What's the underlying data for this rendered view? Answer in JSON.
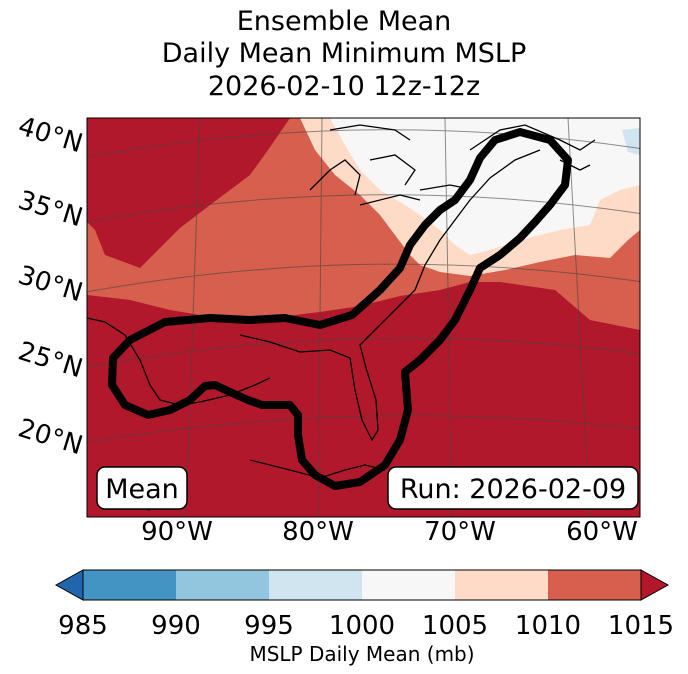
{
  "title_lines": [
    "Ensemble Mean",
    "Daily Mean Minimum MSLP",
    "2026-02-10 12z-12z"
  ],
  "map": {
    "lat_labels": [
      "40°N",
      "35°N",
      "30°N",
      "25°N",
      "20°N"
    ],
    "lon_labels": [
      "90°W",
      "80°W",
      "70°W",
      "60°W"
    ],
    "overlay_left": "Mean",
    "overlay_right": "Run: 2026-02-09",
    "contour_color": "#000000"
  },
  "colorbar": {
    "label": "MSLP Daily Mean (mb)",
    "ticks": [
      "985",
      "990",
      "995",
      "1000",
      "1005",
      "1010",
      "1015"
    ],
    "colors": [
      "#2166ac",
      "#4393c3",
      "#92c5de",
      "#d1e5f0",
      "#f7f7f7",
      "#fddbc7",
      "#d6604d",
      "#b2182b"
    ],
    "extend": "both"
  }
}
